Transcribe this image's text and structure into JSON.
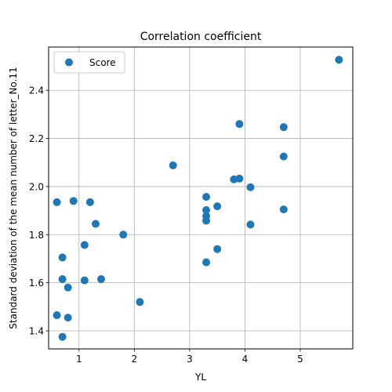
{
  "chart_data": {
    "type": "scatter",
    "title": "Correlation coefficient",
    "xlabel": "YL",
    "ylabel": "Standard deviation of the mean number of letter_No.11",
    "xlim": [
      0.45,
      5.95
    ],
    "ylim": [
      1.325,
      2.58
    ],
    "xticks": [
      1,
      2,
      3,
      4,
      5
    ],
    "yticks": [
      1.4,
      1.6,
      1.8,
      2.0,
      2.2,
      2.4
    ],
    "xtick_labels": [
      "1",
      "2",
      "3",
      "4",
      "5"
    ],
    "ytick_labels": [
      "1.4",
      "1.6",
      "1.8",
      "2.0",
      "2.2",
      "2.4"
    ],
    "grid": true,
    "legend_position": "upper-left",
    "series": [
      {
        "name": "Score",
        "color": "#1f77b4",
        "points": [
          [
            0.6,
            1.935
          ],
          [
            0.6,
            1.465
          ],
          [
            0.7,
            1.705
          ],
          [
            0.7,
            1.615
          ],
          [
            0.7,
            1.375
          ],
          [
            0.8,
            1.58
          ],
          [
            0.8,
            1.455
          ],
          [
            0.9,
            1.94
          ],
          [
            1.1,
            1.757
          ],
          [
            1.1,
            1.61
          ],
          [
            1.2,
            1.935
          ],
          [
            1.3,
            1.845
          ],
          [
            1.4,
            1.615
          ],
          [
            1.8,
            1.8
          ],
          [
            2.1,
            1.52
          ],
          [
            2.7,
            2.088
          ],
          [
            3.3,
            1.957
          ],
          [
            3.3,
            1.902
          ],
          [
            3.3,
            1.877
          ],
          [
            3.3,
            1.858
          ],
          [
            3.3,
            1.685
          ],
          [
            3.5,
            1.918
          ],
          [
            3.5,
            1.74
          ],
          [
            3.8,
            2.03
          ],
          [
            3.9,
            2.26
          ],
          [
            3.9,
            2.033
          ],
          [
            4.1,
            1.997
          ],
          [
            4.1,
            1.842
          ],
          [
            4.7,
            2.247
          ],
          [
            4.7,
            2.125
          ],
          [
            4.7,
            1.905
          ],
          [
            5.7,
            2.527
          ]
        ]
      }
    ]
  }
}
